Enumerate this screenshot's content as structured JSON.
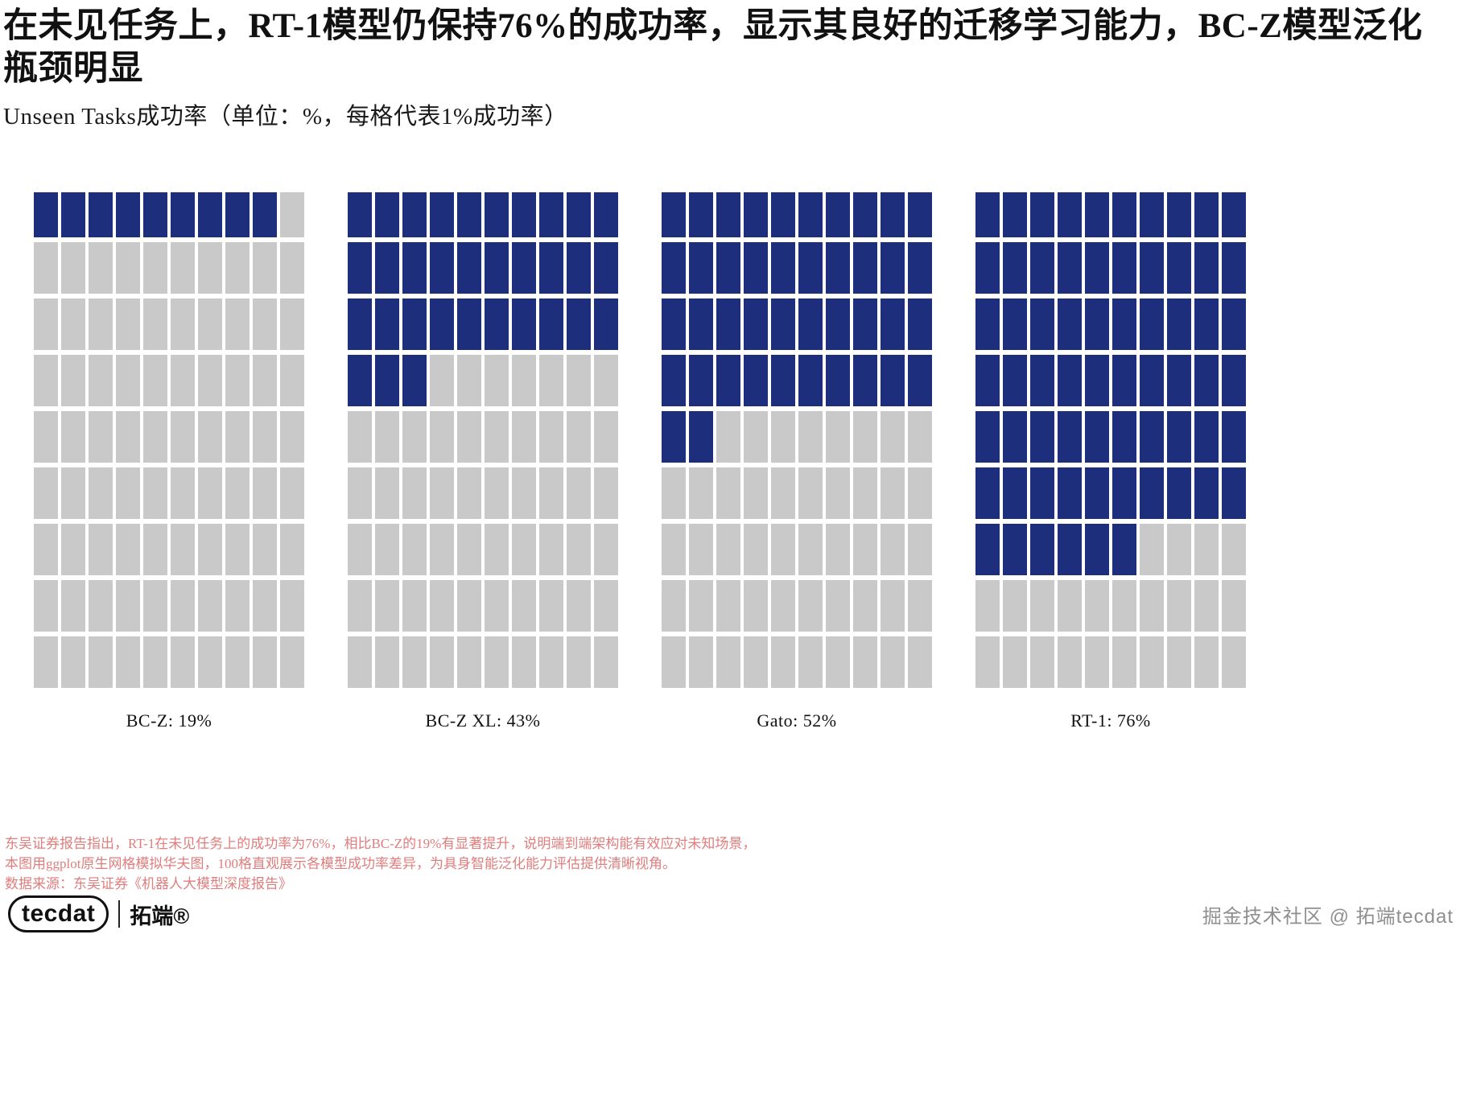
{
  "header": {
    "title": "在未见任务上，RT-1模型仍保持76%的成功率，显示其良好的迁移学习能力，BC-Z模型泛化瓶颈明显",
    "subtitle": "Unseen Tasks成功率（单位：%，每格代表1%成功率）"
  },
  "chart_data": {
    "type": "waffle",
    "title": "在未见任务上，RT-1模型仍保持76%的成功率，显示其良好的迁移学习能力，BC-Z模型泛化瓶颈明显",
    "subtitle": "Unseen Tasks成功率（单位：%，每格代表1%成功率）",
    "unit": "%",
    "cell_value_percent": 1,
    "categories": [
      "BC-Z",
      "BC-Z XL",
      "Gato",
      "RT-1"
    ],
    "values": [
      19,
      43,
      52,
      76
    ],
    "labels": [
      "BC-Z: 19%",
      "BC-Z XL: 43%",
      "Gato: 52%",
      "RT-1: 76%"
    ],
    "grid": {
      "rows": 10,
      "cols": 10,
      "visible_rows": 9,
      "hidden_top_rows": 1
    },
    "colors": {
      "filled": "#1c2e7c",
      "empty": "#c9c9c9"
    }
  },
  "footer": {
    "notes": [
      "东吴证券报告指出，RT-1在未见任务上的成功率为76%，相比BC-Z的19%有显著提升，说明端到端架构能有效应对未知场景，",
      "本图用ggplot原生网格模拟华夫图，100格直观展示各模型成功率差异，为具身智能泛化能力评估提供清晰视角。",
      "数据来源：东吴证券《机器人大模型深度报告》"
    ],
    "notes_color": "#e07d7d",
    "brand": {
      "logo_text": "tecdat",
      "logo_suffix": "拓端®",
      "right_text": "掘金技术社区 @ 拓端tecdat"
    }
  }
}
